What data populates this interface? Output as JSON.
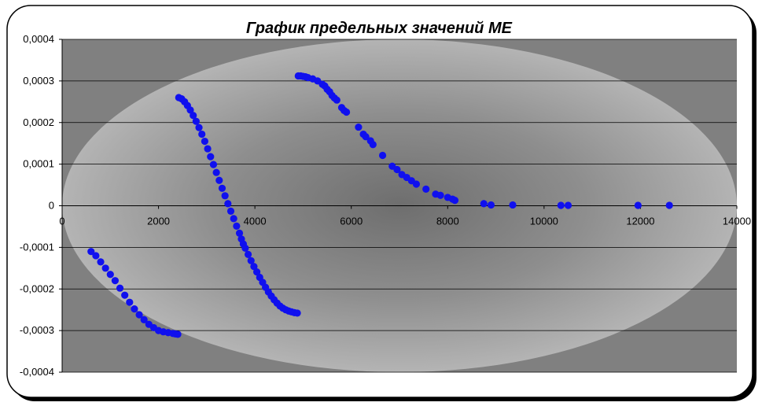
{
  "chart_data": {
    "type": "scatter",
    "title": "График предельных значений МЕ",
    "xlim": [
      0,
      14000
    ],
    "ylim": [
      -0.0004,
      0.0004
    ],
    "x_ticks": [
      0,
      2000,
      4000,
      6000,
      8000,
      10000,
      12000,
      14000
    ],
    "x_tick_labels": [
      "0",
      "2000",
      "4000",
      "6000",
      "8000",
      "10000",
      "12000",
      "14000"
    ],
    "y_ticks": [
      0.0004,
      0.0003,
      0.0002,
      0.0001,
      0,
      -0.0001,
      -0.0002,
      -0.0003,
      -0.0004
    ],
    "y_tick_labels": [
      "0,0004",
      "0,0003",
      "0,0002",
      "0,0001",
      "0",
      "-0,0001",
      "-0,0002",
      "-0,0003",
      "-0,0004"
    ],
    "grid": "horizontal",
    "legend": "none",
    "colors": {
      "marker": "#1010ee",
      "plot_background": "#808080",
      "ellipse_glow": "#b4b4b4",
      "frame_border": "#000000"
    },
    "series": [
      {
        "x": [
          600,
          700,
          800,
          900,
          1000,
          1100,
          1200,
          1300,
          1400,
          1500,
          1600,
          1700,
          1800,
          1900,
          2000,
          2100,
          2200,
          2300,
          2350,
          2400,
          2420,
          2480,
          2540,
          2600,
          2660,
          2720,
          2780,
          2840,
          2900,
          2960,
          3020,
          3080,
          3140,
          3200,
          3260,
          3320,
          3380,
          3440,
          3500,
          3560,
          3620,
          3680,
          3720,
          3760,
          3800,
          3860,
          3920,
          3980,
          4040,
          4100,
          4160,
          4220,
          4280,
          4340,
          4400,
          4460,
          4520,
          4580,
          4640,
          4700,
          4760,
          4820,
          4880,
          4900,
          4950,
          5000,
          5050,
          5100,
          5200,
          5300,
          5400,
          5450,
          5500,
          5550,
          5600,
          5650,
          5700,
          5800,
          5850,
          5900,
          6150,
          6250,
          6300,
          6400,
          6450,
          6650,
          6850,
          6950,
          7050,
          7150,
          7250,
          7350,
          7550,
          7750,
          7850,
          8000,
          8100,
          8150,
          8750,
          8900,
          9350,
          10350,
          10500,
          11950,
          12600
        ],
        "y": [
          -0.00011,
          -0.00012,
          -0.000135,
          -0.00015,
          -0.000165,
          -0.00018,
          -0.000198,
          -0.000215,
          -0.000232,
          -0.000248,
          -0.000262,
          -0.000274,
          -0.000285,
          -0.000293,
          -0.0003,
          -0.000303,
          -0.000305,
          -0.000307,
          -0.000308,
          -0.000309,
          0.00026,
          0.000257,
          0.00025,
          0.000241,
          0.00023,
          0.000217,
          0.000203,
          0.000188,
          0.000172,
          0.000155,
          0.000137,
          0.000118,
          9.9e-05,
          8e-05,
          6.1e-05,
          4.2e-05,
          2.4e-05,
          5e-06,
          -1.3e-05,
          -3.1e-05,
          -4.9e-05,
          -6.6e-05,
          -8e-05,
          -9.2e-05,
          -0.000102,
          -0.000117,
          -0.000132,
          -0.000146,
          -0.000159,
          -0.000172,
          -0.000184,
          -0.000196,
          -0.000207,
          -0.000217,
          -0.000226,
          -0.000234,
          -0.000241,
          -0.000246,
          -0.00025,
          -0.000253,
          -0.000255,
          -0.000257,
          -0.000258,
          0.000312,
          0.000312,
          0.000311,
          0.00031,
          0.000308,
          0.000305,
          0.0003,
          0.000292,
          0.000288,
          0.00028,
          0.000274,
          0.000265,
          0.000259,
          0.000254,
          0.000236,
          0.000229,
          0.000225,
          0.000189,
          0.000172,
          0.000166,
          0.000156,
          0.000147,
          0.000121,
          9.5e-05,
          8.7e-05,
          7.5e-05,
          6.8e-05,
          6e-05,
          5.2e-05,
          4e-05,
          2.8e-05,
          2.5e-05,
          2e-05,
          1.6e-05,
          1.3e-05,
          5e-06,
          2e-06,
          2e-06,
          1e-06,
          1e-06,
          1e-06,
          1e-06
        ]
      }
    ]
  }
}
